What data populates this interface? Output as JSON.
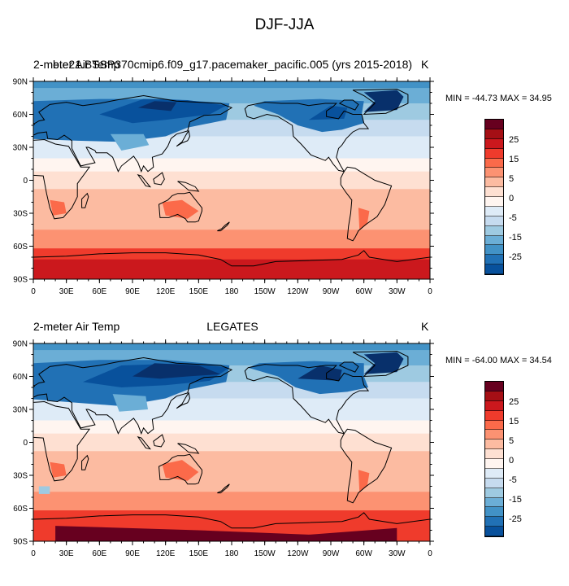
{
  "title": "DJF-JJA",
  "colors": {
    "palette": [
      "#67001f",
      "#a50f15",
      "#cb181d",
      "#ef3b2c",
      "#fb6a4a",
      "#fc9272",
      "#fcbba1",
      "#fee0d2",
      "#fff5f0",
      "#deebf7",
      "#c6dbef",
      "#9ecae1",
      "#6baed6",
      "#4292c6",
      "#2171b5",
      "#08519c",
      "#08306b"
    ],
    "coast": "#000000"
  },
  "axes": {
    "lon_labels": [
      "0",
      "30E",
      "60E",
      "90E",
      "120E",
      "150E",
      "180",
      "150W",
      "120W",
      "90W",
      "60W",
      "30W",
      "0"
    ],
    "lat_labels": [
      "90N",
      "60N",
      "30N",
      "0",
      "30S",
      "60S",
      "90S"
    ]
  },
  "colorbar_labels": [
    "25",
    "15",
    "5",
    "0",
    "-5",
    "-15",
    "-25"
  ],
  "panels": [
    {
      "left_title": "2-meter Air Temp",
      "center_title": "b.e21.BSSP370cmip6.f09_g17.pacemaker_pacific.005 (yrs 2015-2018)",
      "units": "K",
      "minmax": "MIN = -44.73 MAX =  34.95"
    },
    {
      "left_title": "2-meter Air Temp",
      "center_title": "LEGATES",
      "units": "K",
      "minmax": "MIN = -64.00 MAX =  34.54"
    }
  ]
}
